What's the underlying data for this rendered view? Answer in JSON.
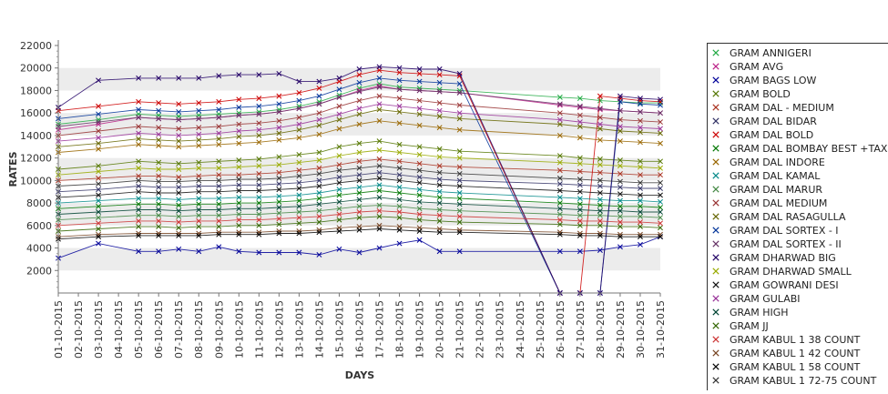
{
  "chart_data": {
    "type": "line",
    "xlabel": "DAYS",
    "ylabel": "RATES",
    "ylim": [
      0,
      22000
    ],
    "yticks": [
      2000,
      4000,
      6000,
      8000,
      10000,
      12000,
      14000,
      16000,
      18000,
      20000,
      22000
    ],
    "grid": "alternating horizontal bands",
    "legend_position": "right",
    "categories": [
      "01-10-2015",
      "02-10-2015",
      "03-10-2015",
      "04-10-2015",
      "05-10-2015",
      "06-10-2015",
      "07-10-2015",
      "08-10-2015",
      "09-10-2015",
      "10-10-2015",
      "11-10-2015",
      "12-10-2015",
      "13-10-2015",
      "14-10-2015",
      "15-10-2015",
      "16-10-2015",
      "17-10-2015",
      "18-10-2015",
      "19-10-2015",
      "20-10-2015",
      "21-10-2015",
      "22-10-2015",
      "23-10-2015",
      "24-10-2015",
      "25-10-2015",
      "26-10-2015",
      "27-10-2015",
      "28-10-2015",
      "29-10-2015",
      "30-10-2015",
      "31-10-2015"
    ],
    "series": [
      {
        "name": "GRAM ANNIGERI",
        "color": "#22aa44",
        "values": [
          15000,
          null,
          15400,
          null,
          15900,
          15800,
          15700,
          15800,
          15900,
          16000,
          16100,
          16300,
          16600,
          17000,
          17600,
          18200,
          18600,
          18300,
          18200,
          18100,
          18000,
          null,
          null,
          null,
          null,
          17400,
          17300,
          17100,
          17000,
          16900,
          16900
        ]
      },
      {
        "name": "GRAM AVG",
        "color": "#bb2288",
        "values": [
          14500,
          null,
          15000,
          null,
          15600,
          15500,
          15400,
          15500,
          15600,
          15800,
          15900,
          16100,
          16400,
          16800,
          17400,
          18000,
          18400,
          18100,
          18000,
          17900,
          17800,
          null,
          null,
          null,
          null,
          16700,
          16500,
          16300,
          16200,
          16100,
          16000
        ]
      },
      {
        "name": "GRAM BAGS LOW",
        "color": "#000099",
        "values": [
          3100,
          null,
          4400,
          null,
          3700,
          3700,
          3900,
          3700,
          4100,
          3700,
          3600,
          3600,
          3600,
          3400,
          3900,
          3600,
          4000,
          4400,
          4700,
          3700,
          3700,
          null,
          null,
          null,
          null,
          3700,
          3700,
          3800,
          4100,
          4300,
          5000
        ]
      },
      {
        "name": "GRAM BOLD",
        "color": "#557700",
        "values": [
          11000,
          null,
          11300,
          null,
          11700,
          11600,
          11500,
          11600,
          11700,
          11800,
          11900,
          12100,
          12300,
          12500,
          13000,
          13300,
          13500,
          13200,
          13000,
          12800,
          12600,
          null,
          null,
          null,
          null,
          12200,
          12000,
          11900,
          11800,
          11700,
          11700
        ]
      },
      {
        "name": "GRAM DAL - MEDIUM",
        "color": "#aa3322",
        "values": [
          10000,
          null,
          10200,
          null,
          10400,
          10400,
          10300,
          10400,
          10500,
          10500,
          10600,
          10700,
          10900,
          11100,
          11400,
          11700,
          11900,
          11700,
          11500,
          11300,
          11200,
          null,
          null,
          null,
          null,
          10900,
          10800,
          10700,
          10600,
          10500,
          10500
        ]
      },
      {
        "name": "GRAM DAL BIDAR",
        "color": "#333366",
        "values": [
          9000,
          null,
          9200,
          null,
          9500,
          9400,
          9400,
          9500,
          9500,
          9600,
          9600,
          9700,
          9800,
          10000,
          10300,
          10500,
          10700,
          10500,
          10300,
          10100,
          10000,
          null,
          null,
          null,
          null,
          9700,
          9600,
          9500,
          9400,
          9300,
          9300
        ]
      },
      {
        "name": "GRAM DAL BOLD",
        "color": "#cc0000",
        "values": [
          16200,
          null,
          16600,
          null,
          17000,
          16900,
          16800,
          16900,
          17000,
          17200,
          17300,
          17500,
          17800,
          18200,
          18800,
          19400,
          19800,
          19600,
          19500,
          19400,
          19300,
          null,
          null,
          null,
          null,
          0,
          0,
          17500,
          17300,
          17100,
          17000
        ]
      },
      {
        "name": "GRAM DAL BOMBAY BEST +TAX",
        "color": "#007700",
        "values": [
          7500,
          null,
          7700,
          null,
          7900,
          7900,
          7800,
          7900,
          7900,
          8000,
          8000,
          8100,
          8200,
          8400,
          8700,
          8900,
          9100,
          8900,
          8700,
          8500,
          8400,
          null,
          null,
          null,
          null,
          8000,
          7900,
          7800,
          7700,
          7700,
          7600
        ]
      },
      {
        "name": "GRAM DAL INDORE",
        "color": "#996600",
        "values": [
          12500,
          null,
          12800,
          null,
          13200,
          13100,
          13000,
          13100,
          13200,
          13300,
          13400,
          13600,
          13800,
          14100,
          14600,
          15000,
          15300,
          15100,
          14900,
          14700,
          14500,
          null,
          null,
          null,
          null,
          14000,
          13800,
          13600,
          13500,
          13400,
          13300
        ]
      },
      {
        "name": "GRAM DAL KAMAL",
        "color": "#008888",
        "values": [
          8000,
          null,
          8200,
          null,
          8400,
          8400,
          8300,
          8400,
          8400,
          8500,
          8500,
          8600,
          8700,
          8900,
          9200,
          9400,
          9600,
          9400,
          9200,
          9000,
          8900,
          null,
          null,
          null,
          null,
          8500,
          8400,
          8300,
          8200,
          8200,
          8100
        ]
      },
      {
        "name": "GRAM DAL MARUR",
        "color": "#448844",
        "values": [
          6500,
          null,
          6700,
          null,
          6900,
          6900,
          6800,
          6900,
          6900,
          7000,
          7000,
          7100,
          7200,
          7300,
          7500,
          7700,
          7800,
          7700,
          7500,
          7400,
          7300,
          null,
          null,
          null,
          null,
          7000,
          6900,
          6900,
          6800,
          6800,
          6700
        ]
      },
      {
        "name": "GRAM DAL MEDIUM",
        "color": "#993333",
        "values": [
          14000,
          null,
          14400,
          null,
          14800,
          14700,
          14600,
          14700,
          14800,
          15000,
          15100,
          15300,
          15600,
          16000,
          16600,
          17100,
          17500,
          17300,
          17100,
          16900,
          16700,
          null,
          null,
          null,
          null,
          16000,
          15800,
          15600,
          15400,
          15300,
          15200
        ]
      },
      {
        "name": "GRAM DAL RASAGULLA",
        "color": "#666600",
        "values": [
          13000,
          null,
          13300,
          null,
          13700,
          13600,
          13500,
          13600,
          13700,
          13900,
          14000,
          14200,
          14500,
          14900,
          15400,
          15900,
          16300,
          16100,
          15900,
          15700,
          15500,
          null,
          null,
          null,
          null,
          15000,
          14800,
          14600,
          14400,
          14300,
          14200
        ]
      },
      {
        "name": "GRAM DAL SORTEX - I",
        "color": "#003399",
        "values": [
          15500,
          null,
          15900,
          null,
          16300,
          16200,
          16100,
          16200,
          16300,
          16500,
          16600,
          16800,
          17100,
          17500,
          18100,
          18700,
          19100,
          18900,
          18800,
          18700,
          18600,
          null,
          null,
          null,
          null,
          0,
          0,
          0,
          17000,
          16800,
          16700
        ]
      },
      {
        "name": "GRAM DAL SORTEX - II",
        "color": "#663366",
        "values": [
          14800,
          null,
          15200,
          null,
          15600,
          15500,
          15400,
          15500,
          15600,
          15800,
          15900,
          16100,
          16400,
          16800,
          17400,
          17900,
          18300,
          18100,
          18000,
          17900,
          17800,
          null,
          null,
          null,
          null,
          16800,
          16600,
          16400,
          16200,
          16100,
          16000
        ]
      },
      {
        "name": "GRAM DHARWAD BIG",
        "color": "#220066",
        "values": [
          16500,
          null,
          18900,
          null,
          19100,
          19100,
          19100,
          19100,
          19300,
          19400,
          19400,
          19500,
          18800,
          18800,
          19100,
          19900,
          20100,
          20000,
          19900,
          19900,
          19500,
          null,
          null,
          null,
          null,
          0,
          0,
          0,
          17500,
          17300,
          17200
        ]
      },
      {
        "name": "GRAM DHARWAD SMALL",
        "color": "#99aa00",
        "values": [
          10500,
          null,
          10800,
          null,
          11100,
          11000,
          11000,
          11100,
          11100,
          11200,
          11300,
          11400,
          11600,
          11800,
          12200,
          12500,
          12700,
          12500,
          12300,
          12100,
          12000,
          null,
          null,
          null,
          null,
          11600,
          11500,
          11400,
          11300,
          11200,
          11100
        ]
      },
      {
        "name": "GRAM GOWRANI DESI",
        "color": "#111111",
        "values": [
          8500,
          null,
          8700,
          null,
          9000,
          8900,
          8900,
          9000,
          9000,
          9100,
          9100,
          9200,
          9300,
          9500,
          9800,
          10000,
          10200,
          10000,
          9800,
          9600,
          9500,
          null,
          null,
          null,
          null,
          9100,
          9000,
          8900,
          8800,
          8700,
          8700
        ]
      },
      {
        "name": "GRAM GULABI",
        "color": "#993399",
        "values": [
          13500,
          null,
          13800,
          null,
          14200,
          14100,
          14000,
          14100,
          14200,
          14400,
          14500,
          14700,
          15000,
          15400,
          15900,
          16400,
          16800,
          16600,
          16400,
          16200,
          16000,
          null,
          null,
          null,
          null,
          15400,
          15200,
          15000,
          14800,
          14700,
          14600
        ]
      },
      {
        "name": "GRAM HIGH",
        "color": "#004433",
        "values": [
          7000,
          null,
          7200,
          null,
          7400,
          7400,
          7300,
          7400,
          7400,
          7500,
          7500,
          7600,
          7700,
          7900,
          8100,
          8300,
          8500,
          8300,
          8100,
          8000,
          7900,
          null,
          null,
          null,
          null,
          7500,
          7400,
          7300,
          7300,
          7200,
          7200
        ]
      },
      {
        "name": "GRAM JJ",
        "color": "#336600",
        "values": [
          5500,
          null,
          5700,
          null,
          5900,
          5900,
          5800,
          5900,
          5900,
          6000,
          6000,
          6100,
          6200,
          6300,
          6500,
          6700,
          6800,
          6700,
          6500,
          6400,
          6300,
          null,
          null,
          null,
          null,
          6100,
          6000,
          6000,
          5900,
          5900,
          5800
        ]
      },
      {
        "name": "GRAM KABUL 1 38 COUNT",
        "color": "#cc3333",
        "values": [
          6000,
          null,
          6200,
          null,
          6400,
          6400,
          6300,
          6400,
          6400,
          6500,
          6500,
          6600,
          6700,
          6800,
          7000,
          7200,
          7300,
          7200,
          7000,
          6900,
          6800,
          null,
          null,
          null,
          null,
          6500,
          6400,
          6400,
          6300,
          6300,
          6200
        ]
      },
      {
        "name": "GRAM KABUL 1 42 COUNT",
        "color": "#774422",
        "values": [
          5000,
          null,
          5200,
          null,
          5300,
          5300,
          5300,
          5300,
          5400,
          5400,
          5400,
          5500,
          5500,
          5600,
          5800,
          5900,
          6000,
          5900,
          5800,
          5700,
          5600,
          null,
          null,
          null,
          null,
          5400,
          5300,
          5300,
          5200,
          5200,
          5200
        ]
      },
      {
        "name": "GRAM KABUL 1 58 COUNT",
        "color": "#000000",
        "values": [
          4800,
          null,
          5000,
          null,
          5100,
          5100,
          5100,
          5100,
          5200,
          5200,
          5200,
          5300,
          5300,
          5400,
          5500,
          5600,
          5700,
          5600,
          5500,
          5400,
          5400,
          null,
          null,
          null,
          null,
          5200,
          5100,
          5100,
          5000,
          5000,
          5000
        ]
      },
      {
        "name": "GRAM KABUL 1 72-75 COUNT",
        "color": "#333333",
        "values": [
          9500,
          null,
          9700,
          null,
          10000,
          9900,
          9900,
          10000,
          10000,
          10100,
          10100,
          10200,
          10400,
          10600,
          10900,
          11100,
          11300,
          11100,
          10900,
          10700,
          10600,
          null,
          null,
          null,
          null,
          10200,
          10100,
          10000,
          9900,
          9800,
          9800
        ]
      }
    ]
  }
}
